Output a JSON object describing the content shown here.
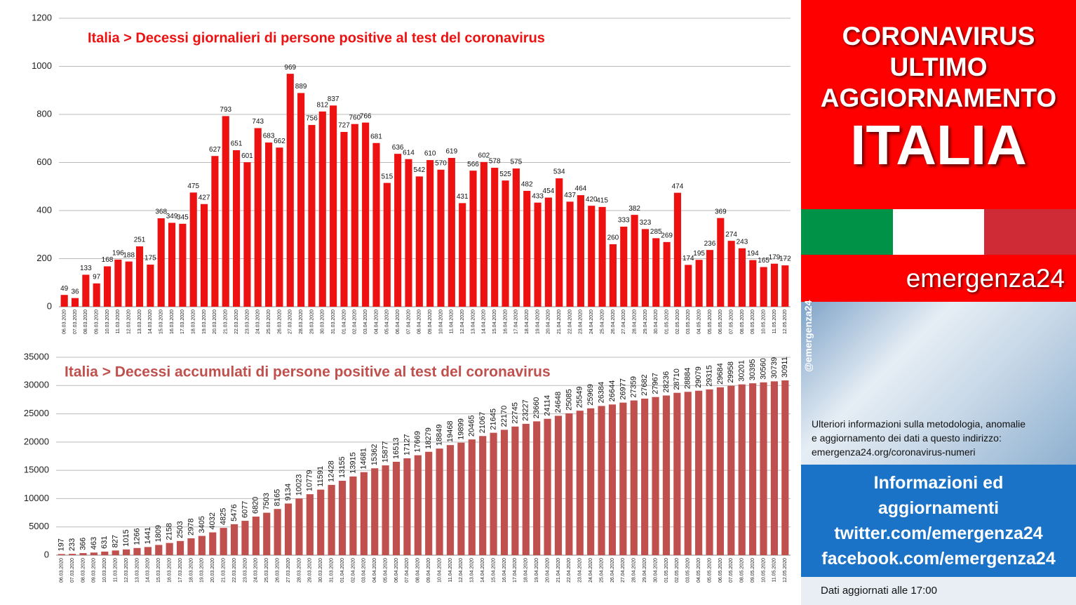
{
  "chart_data": [
    {
      "type": "bar",
      "title": "Italia > Decessi giornalieri di persone positive al test del coronavirus",
      "color": "#ee1111",
      "grid": true,
      "categories": [
        "06.03.2020",
        "07.03.2020",
        "08.03.2020",
        "09.03.2020",
        "10.03.2020",
        "11.03.2020",
        "12.03.2020",
        "13.03.2020",
        "14.03.2020",
        "15.03.2020",
        "16.03.2020",
        "17.03.2020",
        "18.03.2020",
        "19.03.2020",
        "20.03.2020",
        "21.03.2020",
        "22.03.2020",
        "23.03.2020",
        "24.03.2020",
        "25.03.2020",
        "26.03.2020",
        "27.03.2020",
        "28.03.2020",
        "29.03.2020",
        "30.03.2020",
        "31.03.2020",
        "01.04.2020",
        "02.04.2020",
        "03.04.2020",
        "04.04.2020",
        "05.04.2020",
        "06.04.2020",
        "07.04.2020",
        "08.04.2020",
        "09.04.2020",
        "10.04.2020",
        "11.04.2020",
        "12.04.2020",
        "13.04.2020",
        "14.04.2020",
        "15.04.2020",
        "16.04.2020",
        "17.04.2020",
        "18.04.2020",
        "19.04.2020",
        "20.04.2020",
        "21.04.2020",
        "22.04.2020",
        "23.04.2020",
        "24.04.2020",
        "25.04.2020",
        "26.04.2020",
        "27.04.2020",
        "28.04.2020",
        "29.04.2020",
        "30.04.2020",
        "01.05.2020",
        "02.05.2020",
        "03.05.2020",
        "04.05.2020",
        "05.05.2020",
        "06.05.2020",
        "07.05.2020",
        "08.05.2020",
        "09.05.2020",
        "10.05.2020",
        "11.05.2020",
        "12.05.2020"
      ],
      "values": [
        49,
        36,
        133,
        97,
        168,
        196,
        188,
        251,
        175,
        368,
        349,
        345,
        475,
        427,
        627,
        793,
        651,
        601,
        743,
        683,
        662,
        969,
        889,
        756,
        812,
        837,
        727,
        760,
        766,
        681,
        515,
        636,
        614,
        542,
        610,
        570,
        619,
        431,
        566,
        602,
        578,
        525,
        575,
        482,
        433,
        454,
        534,
        437,
        464,
        420,
        415,
        260,
        333,
        382,
        323,
        285,
        269,
        474,
        174,
        195,
        236,
        369,
        274,
        243,
        194,
        165,
        179,
        172
      ],
      "ylim": [
        0,
        1200
      ],
      "yticks": [
        0,
        200,
        400,
        600,
        800,
        1000,
        1200
      ]
    },
    {
      "type": "bar",
      "title": "Italia > Decessi accumulati di persone positive al test del coronavirus",
      "color": "#c0504d",
      "grid": true,
      "categories": [
        "06.03.2020",
        "07.03.2020",
        "08.03.2020",
        "09.03.2020",
        "10.03.2020",
        "11.03.2020",
        "12.03.2020",
        "13.03.2020",
        "14.03.2020",
        "15.03.2020",
        "16.03.2020",
        "17.03.2020",
        "18.03.2020",
        "19.03.2020",
        "20.03.2020",
        "21.03.2020",
        "22.03.2020",
        "23.03.2020",
        "24.03.2020",
        "25.03.2020",
        "26.03.2020",
        "27.03.2020",
        "28.03.2020",
        "29.03.2020",
        "30.03.2020",
        "31.03.2020",
        "01.04.2020",
        "02.04.2020",
        "03.04.2020",
        "04.04.2020",
        "05.04.2020",
        "06.04.2020",
        "07.04.2020",
        "08.04.2020",
        "09.04.2020",
        "10.04.2020",
        "11.04.2020",
        "12.04.2020",
        "13.04.2020",
        "14.04.2020",
        "15.04.2020",
        "16.04.2020",
        "17.04.2020",
        "18.04.2020",
        "19.04.2020",
        "20.04.2020",
        "21.04.2020",
        "22.04.2020",
        "23.04.2020",
        "24.04.2020",
        "25.04.2020",
        "26.04.2020",
        "27.04.2020",
        "28.04.2020",
        "29.04.2020",
        "30.04.2020",
        "01.05.2020",
        "02.05.2020",
        "03.05.2020",
        "04.05.2020",
        "05.05.2020",
        "06.05.2020",
        "07.05.2020",
        "08.05.2020",
        "09.05.2020",
        "10.05.2020",
        "11.05.2020",
        "12.05.2020"
      ],
      "values": [
        197,
        233,
        366,
        463,
        631,
        827,
        1015,
        1266,
        1441,
        1809,
        2158,
        2503,
        2978,
        3405,
        4032,
        4825,
        5476,
        6077,
        6820,
        7503,
        8165,
        9134,
        10023,
        10779,
        11591,
        12428,
        13155,
        13915,
        14681,
        15362,
        15877,
        16513,
        17127,
        17669,
        18279,
        18849,
        19468,
        19899,
        20465,
        21067,
        21645,
        22170,
        22745,
        23227,
        23660,
        24114,
        24648,
        25085,
        25549,
        25969,
        26384,
        26644,
        26977,
        27359,
        27682,
        27967,
        28236,
        28710,
        28884,
        29079,
        29315,
        29684,
        29958,
        30201,
        30395,
        30560,
        30739,
        30911
      ],
      "ylim": [
        0,
        35000
      ],
      "yticks": [
        0,
        5000,
        10000,
        15000,
        20000,
        25000,
        30000,
        35000
      ]
    }
  ],
  "sidebar": {
    "heading": [
      "CORONAVIRUS",
      "ULTIMO",
      "AGGIORNAMENTO"
    ],
    "country": "ITALIA",
    "brand": "emergenza24",
    "handle": "@emergenza24",
    "info": [
      "Ulteriori informazioni sulla metodologia, anomalie",
      "e aggiornamento dei dati a questo indirizzo:",
      "emergenza24.org/coronavirus-numeri"
    ],
    "links": [
      "Informazioni ed",
      "aggiornamenti",
      "twitter.com/emergenza24",
      "facebook.com/emergenza24"
    ],
    "updated": "Dati aggiornati alle 17:00"
  }
}
